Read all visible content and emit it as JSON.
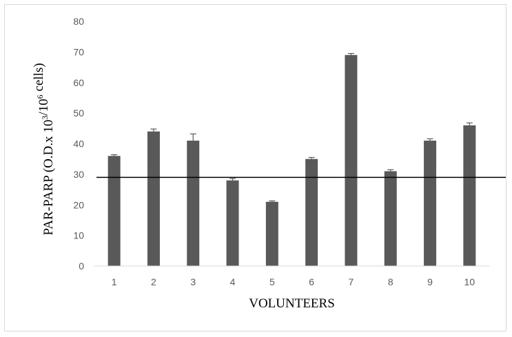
{
  "chart_data": {
    "type": "bar",
    "title": "",
    "xlabel": "VOLUNTEERS",
    "ylabel": {
      "parts": [
        {
          "text": "PAR-PARP (O.D.",
          "sup": false
        },
        {
          "text": "x 10",
          "sup": false
        },
        {
          "text": "3",
          "sup": true
        },
        {
          "text": "/10",
          "sup": false
        },
        {
          "text": "6",
          "sup": true
        },
        {
          "text": " cells)",
          "sup": false
        }
      ]
    },
    "categories": [
      "1",
      "2",
      "3",
      "4",
      "5",
      "6",
      "7",
      "8",
      "9",
      "10"
    ],
    "values": [
      36,
      44,
      41,
      28,
      21,
      35,
      69,
      31,
      41,
      46
    ],
    "error_bars": [
      0.4,
      0.8,
      2.2,
      0.6,
      0.3,
      0.5,
      0.5,
      0.5,
      0.6,
      0.8
    ],
    "ylim": [
      0,
      80
    ],
    "yticks": [
      0,
      10,
      20,
      30,
      40,
      50,
      60,
      70,
      80
    ],
    "reference_line": 29,
    "grid": false,
    "legend": "none",
    "bar_color": "#595959",
    "line_color": "#000000"
  }
}
